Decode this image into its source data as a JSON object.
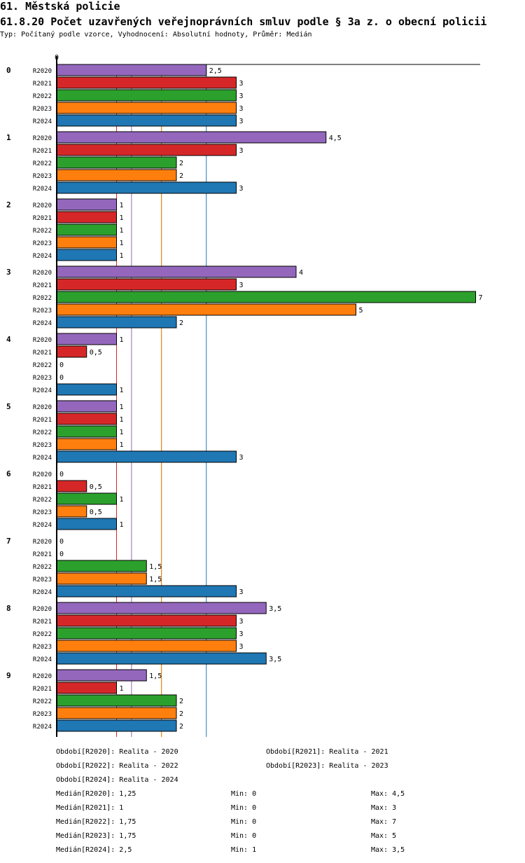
{
  "header": {
    "title": "61. Městská policie",
    "subtitle": "61.8.20 Počet uzavřených veřejnoprávních smluv podle § 3a z. o obecní policii",
    "typ": "Typ: Počítaný podle vzorce, Vyhodnocení: Absolutní hodnoty, Průměr: Medián"
  },
  "chart_data": {
    "type": "bar",
    "orientation": "horizontal",
    "xaxis_tick": "0",
    "xlim": [
      0,
      7.1
    ],
    "categories": [
      "0",
      "1",
      "2",
      "3",
      "4",
      "5",
      "6",
      "7",
      "8",
      "9"
    ],
    "series": [
      {
        "name": "R2020",
        "color": "#9467bd",
        "values": [
          2.5,
          4.5,
          1,
          4,
          1,
          1,
          0,
          0,
          3.5,
          1.5
        ],
        "labels": [
          "2,5",
          "4,5",
          "1",
          "4",
          "1",
          "1",
          "0",
          "0",
          "3,5",
          "1,5"
        ]
      },
      {
        "name": "R2021",
        "color": "#d62728",
        "values": [
          3,
          3,
          1,
          3,
          0.5,
          1,
          0.5,
          0,
          3,
          1
        ],
        "labels": [
          "3",
          "3",
          "1",
          "3",
          "0,5",
          "1",
          "0,5",
          "0",
          "3",
          "1"
        ]
      },
      {
        "name": "R2022",
        "color": "#2ca02c",
        "values": [
          3,
          2,
          1,
          7,
          0,
          1,
          1,
          1.5,
          3,
          2
        ],
        "labels": [
          "3",
          "2",
          "1",
          "7",
          "0",
          "1",
          "1",
          "1,5",
          "3",
          "2"
        ]
      },
      {
        "name": "R2023",
        "color": "#ff7f0e",
        "values": [
          3,
          2,
          1,
          5,
          0,
          1,
          0.5,
          1.5,
          3,
          2
        ],
        "labels": [
          "3",
          "2",
          "1",
          "5",
          "0",
          "1",
          "0,5",
          "1,5",
          "3",
          "2"
        ]
      },
      {
        "name": "R2024",
        "color": "#1f77b4",
        "values": [
          3,
          3,
          1,
          2,
          1,
          3,
          1,
          3,
          3.5,
          2
        ],
        "labels": [
          "3",
          "3",
          "1",
          "2",
          "1",
          "3",
          "1",
          "3",
          "3,5",
          "2"
        ]
      }
    ],
    "median_lines": [
      {
        "series": "R2020",
        "value": 1.25,
        "color": "#9467bd"
      },
      {
        "series": "R2021",
        "value": 1,
        "color": "#d62728"
      },
      {
        "series": "R2022",
        "value": 1.75,
        "color": "#2ca02c"
      },
      {
        "series": "R2023",
        "value": 1.75,
        "color": "#ff7f0e"
      },
      {
        "series": "R2024",
        "value": 2.5,
        "color": "#1f77b4"
      }
    ]
  },
  "legend": {
    "periods": [
      "Období[R2020]: Realita - 2020",
      "Období[R2021]: Realita - 2021",
      "Období[R2022]: Realita - 2022",
      "Období[R2023]: Realita - 2023",
      "Období[R2024]: Realita - 2024"
    ],
    "stats": [
      {
        "median": "Medián[R2020]: 1,25",
        "min": "Min: 0",
        "max": "Max: 4,5"
      },
      {
        "median": "Medián[R2021]: 1",
        "min": "Min: 0",
        "max": "Max: 3"
      },
      {
        "median": "Medián[R2022]: 1,75",
        "min": "Min: 0",
        "max": "Max: 7"
      },
      {
        "median": "Medián[R2023]: 1,75",
        "min": "Min: 0",
        "max": "Max: 5"
      },
      {
        "median": "Medián[R2024]: 2,5",
        "min": "Min: 1",
        "max": "Max: 3,5"
      }
    ]
  }
}
